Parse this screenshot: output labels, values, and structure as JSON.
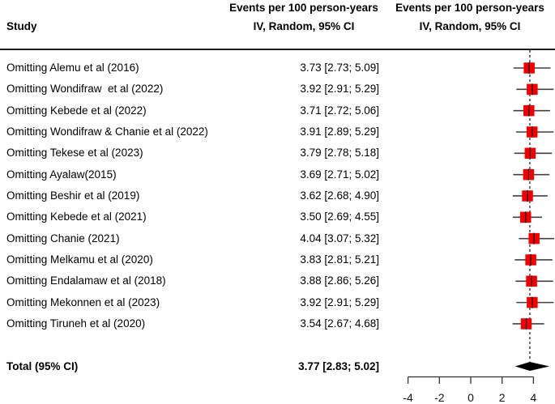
{
  "header": {
    "study": "Study",
    "mid_line1": "Events per 100 person-years",
    "mid_line2": "IV, Random, 95% CI",
    "right_line1": "Events per 100 person-years",
    "right_line2": "IV, Random, 95% CI"
  },
  "chart_data": {
    "type": "forest",
    "effect_measure": "Events per 100 person-years",
    "model_label": "IV, Random, 95% CI",
    "studies": [
      {
        "label": "Omitting Alemu et al (2016)",
        "estimate": 3.73,
        "ci_lower": 2.73,
        "ci_upper": 5.09,
        "ci_text": "3.73 [2.73; 5.09]"
      },
      {
        "label": "Omitting Wondifraw  et al (2022)",
        "estimate": 3.92,
        "ci_lower": 2.91,
        "ci_upper": 5.29,
        "ci_text": "3.92 [2.91; 5.29]"
      },
      {
        "label": "Omitting Kebede et al (2022)",
        "estimate": 3.71,
        "ci_lower": 2.72,
        "ci_upper": 5.06,
        "ci_text": "3.71 [2.72; 5.06]"
      },
      {
        "label": "Omitting Wondifraw & Chanie et al (2022)",
        "estimate": 3.91,
        "ci_lower": 2.89,
        "ci_upper": 5.29,
        "ci_text": "3.91 [2.89; 5.29]"
      },
      {
        "label": "Omitting Tekese et al (2023)",
        "estimate": 3.79,
        "ci_lower": 2.78,
        "ci_upper": 5.18,
        "ci_text": "3.79 [2.78; 5.18]"
      },
      {
        "label": "Omitting Ayalaw(2015)",
        "estimate": 3.69,
        "ci_lower": 2.71,
        "ci_upper": 5.02,
        "ci_text": "3.69 [2.71; 5.02]"
      },
      {
        "label": "Omitting Beshir et al (2019)",
        "estimate": 3.62,
        "ci_lower": 2.68,
        "ci_upper": 4.9,
        "ci_text": "3.62 [2.68; 4.90]"
      },
      {
        "label": "Omitting Kebede et al (2021)",
        "estimate": 3.5,
        "ci_lower": 2.69,
        "ci_upper": 4.55,
        "ci_text": "3.50 [2.69; 4.55]"
      },
      {
        "label": "Omitting Chanie (2021)",
        "estimate": 4.04,
        "ci_lower": 3.07,
        "ci_upper": 5.32,
        "ci_text": "4.04 [3.07; 5.32]"
      },
      {
        "label": "Omitting Melkamu et al (2020)",
        "estimate": 3.83,
        "ci_lower": 2.81,
        "ci_upper": 5.21,
        "ci_text": "3.83 [2.81; 5.21]"
      },
      {
        "label": "Omitting Endalamaw et al (2018)",
        "estimate": 3.88,
        "ci_lower": 2.86,
        "ci_upper": 5.26,
        "ci_text": "3.88 [2.86; 5.26]"
      },
      {
        "label": "Omitting Mekonnen et al (2023)",
        "estimate": 3.92,
        "ci_lower": 2.91,
        "ci_upper": 5.29,
        "ci_text": "3.92 [2.91; 5.29]"
      },
      {
        "label": "Omitting Tiruneh et al (2020)",
        "estimate": 3.54,
        "ci_lower": 2.67,
        "ci_upper": 4.68,
        "ci_text": "3.54 [2.67; 4.68]"
      }
    ],
    "total": {
      "label": "Total (95% CI)",
      "estimate": 3.77,
      "ci_lower": 2.83,
      "ci_upper": 5.02,
      "ci_text": "3.77 [2.83; 5.02]"
    },
    "axis": {
      "tick_values": [
        -4,
        -2,
        0,
        2,
        4
      ],
      "tick_labels": [
        "-4",
        "-2",
        "0",
        "2",
        "4"
      ],
      "range": [
        -4,
        4
      ]
    },
    "reference_line": 3.77,
    "marker_color": "#f40000",
    "ci_line_color": "#404040",
    "diamond_color": "#000000",
    "axis_color": "#333333"
  }
}
